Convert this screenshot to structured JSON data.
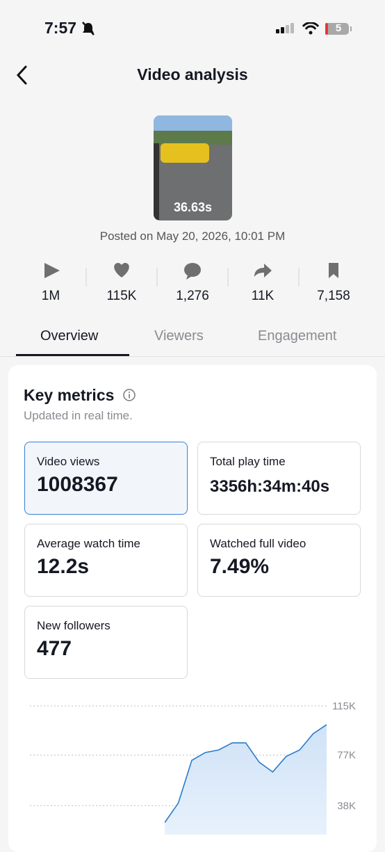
{
  "status_bar": {
    "time": "7:57",
    "battery": "5"
  },
  "header": {
    "title": "Video analysis"
  },
  "video": {
    "duration": "36.63s",
    "posted": "Posted on May 20, 2026, 10:01 PM"
  },
  "stats": [
    "1M",
    "115K",
    "1,276",
    "11K",
    "7,158"
  ],
  "tabs": [
    "Overview",
    "Viewers",
    "Engagement"
  ],
  "key_metrics": {
    "title": "Key metrics",
    "subtitle": "Updated in real time.",
    "metrics": [
      {
        "label": "Video views",
        "value": "1008367"
      },
      {
        "label": "Total play time",
        "value": "3356h:34m:40s"
      },
      {
        "label": "Average watch time",
        "value": "12.2s"
      },
      {
        "label": "Watched full video",
        "value": "7.49%"
      },
      {
        "label": "New followers",
        "value": "477"
      }
    ]
  },
  "chart_data": {
    "type": "line",
    "color": "#2a7bc8",
    "values": [
      25000,
      40000,
      73000,
      79000,
      81000,
      86500,
      86500,
      71500,
      64000,
      76000,
      81000,
      93500,
      100500
    ],
    "ylim": [
      15600,
      122500
    ],
    "yticks": [
      {
        "value": 115000,
        "label": "115K"
      },
      {
        "value": 77000,
        "label": "77K"
      },
      {
        "value": 38000,
        "label": "38K"
      }
    ],
    "grid": true
  }
}
